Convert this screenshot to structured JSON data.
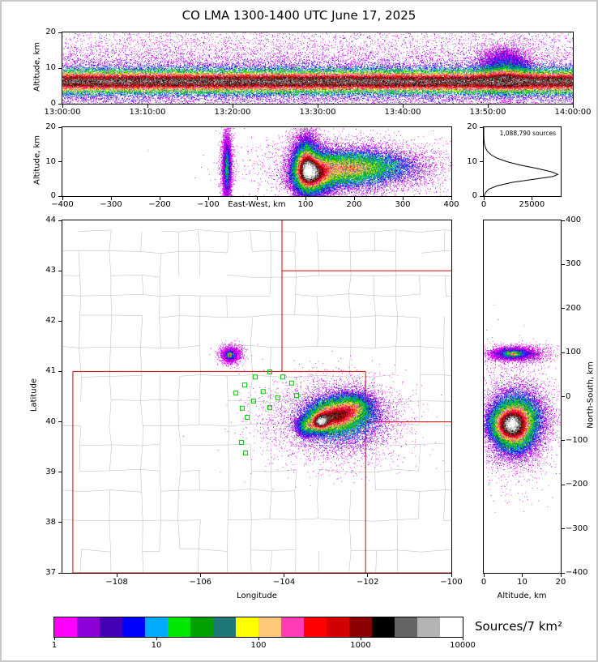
{
  "title": "CO LMA 1300-1400 UTC June 17, 2025",
  "frame": {
    "background": "#ffffff",
    "border": "#c8c8c8"
  },
  "chart_data": [
    {
      "panel": "time_height",
      "type": "heatmap",
      "ylabel": "Altitude, km",
      "x_ticks": [
        "13:00:00",
        "13:10:00",
        "13:20:00",
        "13:30:00",
        "13:40:00",
        "13:50:00",
        "14:00:00"
      ],
      "x_range_seconds": [
        0,
        3600
      ],
      "y_ticks": [
        0,
        10,
        20
      ],
      "y_range": [
        0,
        20
      ],
      "density_model": {
        "main_layer": {
          "alt_center": 6.3,
          "alt_sigma": 2.0,
          "weight": 0.68
        },
        "spread_layer": {
          "alt_center": 6.5,
          "alt_sigma": 4.8,
          "weight": 0.2
        },
        "uniform_background_weight": 0.065,
        "burst": {
          "time_s": 3120,
          "time_sigma_s": 85,
          "alt_center": 9.2,
          "alt_sigma": 2.8,
          "weight": 0.18
        },
        "points": 85000,
        "t_scale": 0.84
      }
    },
    {
      "panel": "east_west_altitude",
      "type": "heatmap",
      "xlabel": "East-West, km",
      "ylabel": "Altitude, km",
      "x_ticks": [
        -400,
        -300,
        -200,
        -100,
        0,
        100,
        200,
        300,
        400
      ],
      "x_range": [
        -400,
        400
      ],
      "y_ticks": [
        0,
        10,
        20
      ],
      "y_range": [
        0,
        20
      ],
      "points": 55000,
      "blobs": [
        {
          "x": 115,
          "y": 6.5,
          "sx": 22,
          "sy": 3.2,
          "w": 1.0
        },
        {
          "x": 100,
          "y": 9.0,
          "sx": 14,
          "sy": 4.5,
          "w": 0.8
        },
        {
          "x": 175,
          "y": 8.0,
          "sx": 45,
          "sy": 3.2,
          "w": 0.55
        },
        {
          "x": 245,
          "y": 8.5,
          "sx": 55,
          "sy": 2.6,
          "w": 0.33
        },
        {
          "x": 200,
          "y": 8.0,
          "sx": 100,
          "sy": 4.5,
          "w": 0.2
        },
        {
          "x": -62,
          "y": 8.0,
          "sx": 3.5,
          "sy": 4.0,
          "w": 0.45
        },
        {
          "x": -62,
          "y": 9.0,
          "sx": 7.0,
          "sy": 5.5,
          "w": 0.1
        }
      ]
    },
    {
      "panel": "altitude_histogram",
      "type": "line",
      "annotation": "1,088,790 sources",
      "x_ticks": [
        0,
        25000
      ],
      "x_range": [
        0,
        40000
      ],
      "y_ticks": [
        0,
        10,
        20
      ],
      "y_range": [
        0,
        20
      ],
      "series": {
        "altitude_km": [
          0,
          1,
          2,
          3,
          4,
          5,
          5.7,
          6.3,
          7,
          8,
          9,
          10,
          11,
          12,
          13,
          14,
          15,
          16,
          17,
          18,
          20
        ],
        "source_count": [
          200,
          900,
          2600,
          7000,
          15000,
          27500,
          36000,
          38500,
          35500,
          28000,
          19000,
          12000,
          7000,
          3800,
          1900,
          900,
          400,
          150,
          60,
          20,
          0
        ]
      }
    },
    {
      "panel": "plan_view",
      "type": "map-heatmap",
      "xlabel": "Longitude",
      "ylabel": "Latitude",
      "x_ticks": [
        -108,
        -106,
        -104,
        -102,
        -100
      ],
      "lon_range": [
        -109.3,
        -100
      ],
      "y_ticks": [
        37,
        38,
        39,
        40,
        41,
        42,
        43,
        44
      ],
      "lat_range": [
        37,
        44
      ],
      "state_borders": [
        [
          -109.05,
          37,
          -109.05,
          41
        ],
        [
          -109.05,
          41,
          -102.05,
          41
        ],
        [
          -102.05,
          41,
          -102.05,
          37
        ],
        [
          -109.05,
          37,
          -100.0,
          37
        ],
        [
          -104.05,
          44,
          -104.05,
          41
        ],
        [
          -104.05,
          43,
          -100.0,
          43
        ],
        [
          -102.05,
          40,
          -100.0,
          40
        ]
      ],
      "lma_stations": [
        [
          -104.34,
          40.99
        ],
        [
          -104.69,
          40.89
        ],
        [
          -104.03,
          40.89
        ],
        [
          -104.94,
          40.73
        ],
        [
          -103.82,
          40.77
        ],
        [
          -105.15,
          40.57
        ],
        [
          -104.5,
          40.6
        ],
        [
          -104.15,
          40.48
        ],
        [
          -104.73,
          40.41
        ],
        [
          -105.0,
          40.27
        ],
        [
          -104.34,
          40.28
        ],
        [
          -104.88,
          40.09
        ],
        [
          -103.7,
          40.52
        ],
        [
          -105.02,
          39.59
        ],
        [
          -104.92,
          39.38
        ]
      ],
      "points": 65000,
      "blobs": [
        {
          "x": -103.15,
          "y": 40.0,
          "sx": 0.13,
          "sy": 0.1,
          "w": 1.0
        },
        {
          "x": -102.85,
          "y": 40.12,
          "sx": 0.3,
          "sy": 0.16,
          "w": 0.85
        },
        {
          "x": -102.35,
          "y": 40.28,
          "sx": 0.26,
          "sy": 0.15,
          "w": 0.55
        },
        {
          "x": -103.45,
          "y": 39.92,
          "sx": 0.12,
          "sy": 0.09,
          "w": 0.5
        },
        {
          "x": -102.55,
          "y": 40.05,
          "sx": 0.55,
          "sy": 0.33,
          "w": 0.3
        },
        {
          "x": -102.9,
          "y": 40.05,
          "sx": 0.85,
          "sy": 0.42,
          "w": 0.22
        },
        {
          "x": -105.3,
          "y": 41.33,
          "sx": 0.055,
          "sy": 0.045,
          "w": 0.6
        },
        {
          "x": -105.3,
          "y": 41.33,
          "sx": 0.02,
          "sy": 0.018,
          "w": 0.55
        },
        {
          "x": -105.28,
          "y": 41.34,
          "sx": 0.13,
          "sy": 0.09,
          "w": 0.12
        }
      ]
    },
    {
      "panel": "north_south_altitude",
      "type": "heatmap",
      "xlabel": "Altitude, km",
      "ylabel": "North-South, km",
      "x_ticks": [
        0,
        10,
        20
      ],
      "x_range": [
        0,
        20
      ],
      "y_ticks": [
        400,
        300,
        200,
        100,
        0,
        -100,
        -200,
        -300,
        -400
      ],
      "y_range": [
        -400,
        400
      ],
      "points": 45000,
      "blobs": [
        {
          "x": 6.5,
          "y": -62,
          "sx": 2.8,
          "sy": 22,
          "w": 1.0
        },
        {
          "x": 9.0,
          "y": -45,
          "sx": 3.5,
          "sy": 30,
          "w": 0.65
        },
        {
          "x": 8.0,
          "y": -90,
          "sx": 3.0,
          "sy": 25,
          "w": 0.45
        },
        {
          "x": 8.0,
          "y": -55,
          "sx": 5.0,
          "sy": 60,
          "w": 0.28
        },
        {
          "x": 7.5,
          "y": 98,
          "sx": 2.5,
          "sy": 6,
          "w": 0.45
        },
        {
          "x": 7.5,
          "y": 98,
          "sx": 1.2,
          "sy": 3,
          "w": 0.5
        },
        {
          "x": 9.0,
          "y": 98,
          "sx": 4.5,
          "sy": 11,
          "w": 0.12
        }
      ]
    },
    {
      "panel": "colorbar",
      "type": "colorbar-log",
      "label": "Sources/7 km²",
      "ticks": [
        1,
        10,
        100,
        1000,
        10000
      ],
      "range": [
        1,
        10000
      ],
      "colors": [
        "#ff00ff",
        "#8c00d7",
        "#4600b4",
        "#0000ff",
        "#00aaff",
        "#00e600",
        "#00a000",
        "#1e7878",
        "#ffff00",
        "#ffc878",
        "#ff3cb4",
        "#ff0000",
        "#d20000",
        "#8c0000",
        "#000000",
        "#646464",
        "#b4b4b4",
        "#ffffff"
      ],
      "station_marker_color": "#00c800",
      "state_border_color": "#dd0000",
      "county_line_color": "#b8b8b8"
    }
  ]
}
